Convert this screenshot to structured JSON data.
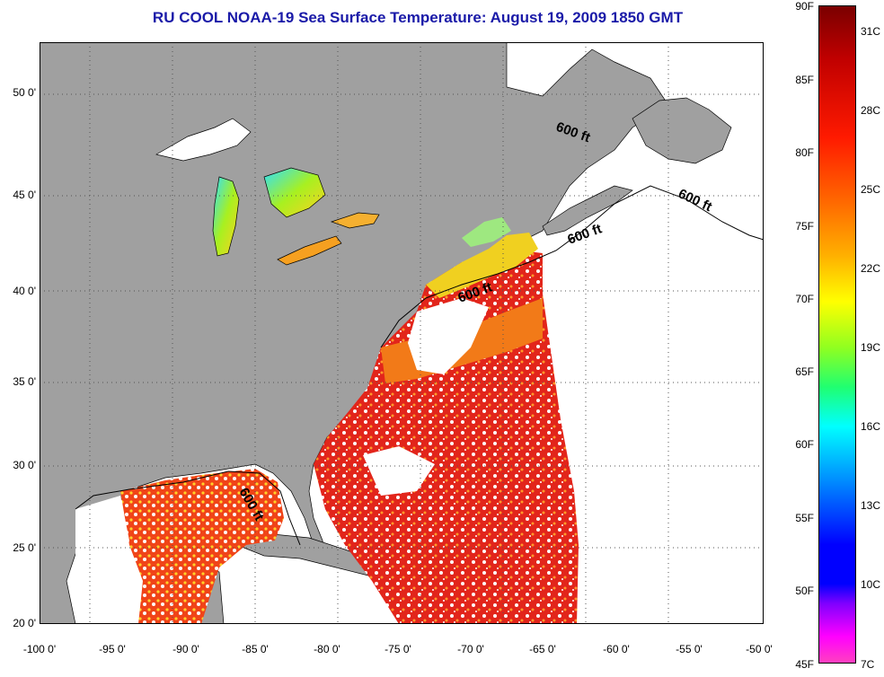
{
  "title": "RU COOL  NOAA-19  Sea Surface Temperature:  August 19, 2009 1850 GMT",
  "axes": {
    "lon_ticks": [
      "-100 0'",
      "-95 0'",
      "-90 0'",
      "-85 0'",
      "-80 0'",
      "-75 0'",
      "-70 0'",
      "-65 0'",
      "-60 0'",
      "-55 0'",
      "-50 0'"
    ],
    "lat_ticks": [
      "50 0'",
      "45 0'",
      "40 0'",
      "35 0'",
      "30 0'",
      "25 0'",
      "20 0'"
    ]
  },
  "contour_label": "600 ft",
  "colorbar": {
    "f_labels": [
      "90F",
      "85F",
      "80F",
      "75F",
      "70F",
      "65F",
      "60F",
      "55F",
      "50F",
      "45F"
    ],
    "c_labels": [
      "31C",
      "28C",
      "25C",
      "22C",
      "19C",
      "16C",
      "13C",
      "10C",
      "7C"
    ]
  },
  "colors": {
    "land": "#a0a0a0",
    "ocean_nodata": "#ffffff",
    "title": "#1a1aa8"
  }
}
